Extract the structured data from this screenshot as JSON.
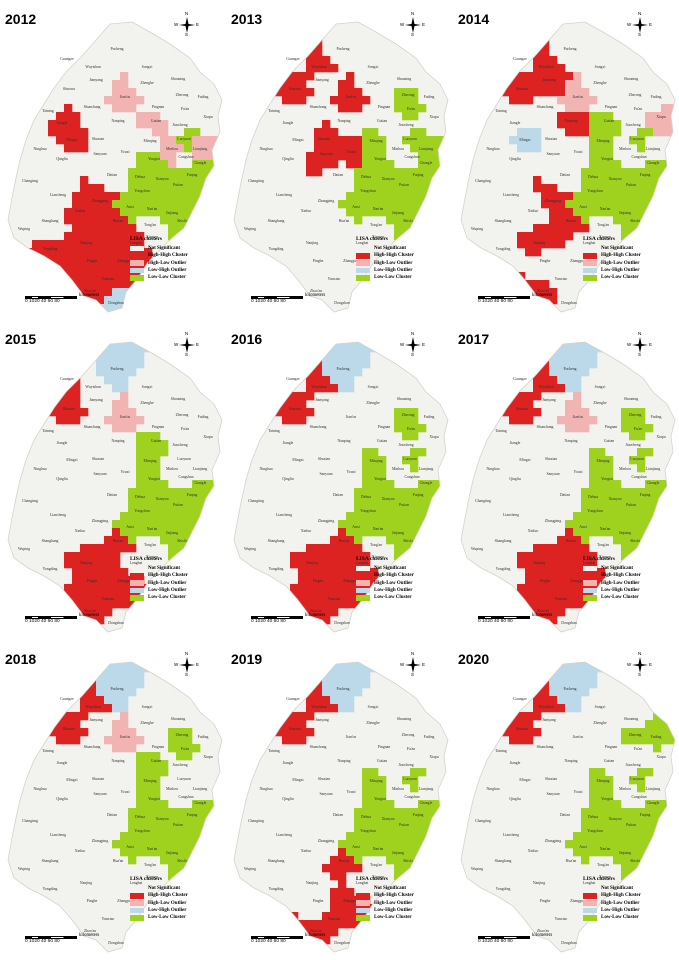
{
  "colors": {
    "not_significant": "#f2f3ee",
    "high_high": "#dd2222",
    "high_low": "#f2b3b3",
    "low_high": "#bcd9ea",
    "low_low": "#9fd11f",
    "border": "#d4d4cc"
  },
  "legend": {
    "title": "LISA clusters",
    "items": [
      {
        "key": "not_significant",
        "label": "Not Significant"
      },
      {
        "key": "high_high",
        "label": "High-High Cluster"
      },
      {
        "key": "high_low",
        "label": "High-Low Outlier"
      },
      {
        "key": "low_high",
        "label": "Low-High Outlier"
      },
      {
        "key": "low_low",
        "label": "Low-Low Cluster"
      }
    ]
  },
  "scale_bar": {
    "labels": "0 1020   40    60    80",
    "unit": "kilometers"
  },
  "compass": {
    "n": "N",
    "s": "S",
    "e": "E",
    "w": "W"
  },
  "place_labels": [
    "Pucheng",
    "Guangze",
    "Wuyishan",
    "Songxi",
    "Jianyang",
    "Zhenghe",
    "Shaowu",
    "Shouning",
    "Jian'ou",
    "Zherong",
    "Fuding",
    "Taining",
    "Shunchang",
    "Pingnan",
    "Fu'an",
    "Xiapu",
    "Jiangle",
    "Nanping",
    "Gutian",
    "Jiaocheng",
    "Luoyuan",
    "Lianjiang",
    "Mingxi",
    "Shaxian",
    "Minqing",
    "Youxi",
    "Yongtai",
    "Minhou",
    "Cangshan",
    "Changle",
    "Ninghua",
    "Qingliu",
    "Sanyuan",
    "Datian",
    "Dehua",
    "Xianyou",
    "Fuqing",
    "Changting",
    "Liancheng",
    "Yongchun",
    "Putian",
    "Anxi",
    "Nan'an",
    "Jinjiang",
    "Shishi",
    "Xinluo",
    "Zhangping",
    "Hua'an",
    "Tong'an",
    "Xiamen",
    "Longhai",
    "Zhangpu",
    "Wuping",
    "Shanghang",
    "Yongding",
    "Pinghe",
    "Nanjing",
    "Yunxiao",
    "Zhao'an",
    "Dongshan"
  ],
  "panels": [
    {
      "year": "2012",
      "high_high": [
        "Jiangle",
        "Mingxi",
        "Xinluo",
        "Zhangping",
        "Yongding",
        "Nanjing",
        "Pinghe",
        "Hua'an",
        "Longhai",
        "Zhangpu",
        "Yunxiao",
        "Zhao'an"
      ],
      "high_low": [
        "Jian'ou",
        "Gutian",
        "Minhou",
        "Lianjiang"
      ],
      "low_high": [
        "Dongshan"
      ],
      "low_low": [
        "Luoyuan",
        "Yongtai",
        "Fuqing",
        "Putian",
        "Xianyou",
        "Dehua",
        "Yongchun",
        "Nan'an",
        "Jinjiang",
        "Shishi",
        "Anxi",
        "Changle"
      ]
    },
    {
      "year": "2013",
      "high_high": [
        "Wuyishan",
        "Shaowu",
        "Jian'ou",
        "Sanyuan",
        "Shaxian",
        "Youxi"
      ],
      "high_low": [],
      "low_high": [],
      "low_low": [
        "Zherong",
        "Fu'an",
        "Luoyuan",
        "Minqing",
        "Yongtai",
        "Fuqing",
        "Putian",
        "Xianyou",
        "Dehua",
        "Yongchun",
        "Anxi",
        "Nan'an",
        "Jinjiang",
        "Shishi",
        "Changle",
        "Lianjiang"
      ]
    },
    {
      "year": "2014",
      "high_high": [
        "Wuyishan",
        "Jianyang",
        "Shaowu",
        "Nanping",
        "Zhangping",
        "Hua'an",
        "Nanjing",
        "Zhao'an"
      ],
      "high_low": [
        "Jian'ou",
        "Xiapu"
      ],
      "low_high": [
        "Mingxi"
      ],
      "low_low": [
        "Gutian",
        "Luoyuan",
        "Minqing",
        "Yongtai",
        "Fuqing",
        "Putian",
        "Xianyou",
        "Dehua",
        "Yongchun",
        "Anxi",
        "Nan'an",
        "Jinjiang",
        "Shishi",
        "Changle"
      ]
    },
    {
      "year": "2015",
      "high_high": [
        "Guangze",
        "Shaowu",
        "Hua'an",
        "Nanjing",
        "Pinghe",
        "Zhangpu",
        "Yunxiao",
        "Zhao'an"
      ],
      "high_low": [
        "Jian'ou"
      ],
      "low_high": [
        "Pucheng"
      ],
      "low_low": [
        "Gutian",
        "Minqing",
        "Yongtai",
        "Fuqing",
        "Putian",
        "Xianyou",
        "Dehua",
        "Yongchun",
        "Anxi",
        "Nan'an",
        "Jinjiang",
        "Shishi",
        "Changle"
      ]
    },
    {
      "year": "2016",
      "high_high": [
        "Wuyishan",
        "Shaowu",
        "Hua'an",
        "Nanjing",
        "Pinghe",
        "Longhai",
        "Zhangpu",
        "Yunxiao",
        "Zhao'an"
      ],
      "high_low": [],
      "low_high": [
        "Pucheng"
      ],
      "low_low": [
        "Zherong",
        "Fu'an",
        "Luoyuan",
        "Minqing",
        "Yongtai",
        "Fuqing",
        "Putian",
        "Xianyou",
        "Dehua",
        "Yongchun",
        "Anxi",
        "Nan'an",
        "Jinjiang",
        "Shishi",
        "Changle"
      ]
    },
    {
      "year": "2017",
      "high_high": [
        "Wuyishan",
        "Shaowu",
        "Hua'an",
        "Nanjing",
        "Pinghe",
        "Longhai",
        "Zhangpu",
        "Yunxiao",
        "Zhao'an"
      ],
      "high_low": [
        "Jian'ou"
      ],
      "low_high": [
        "Pucheng"
      ],
      "low_low": [
        "Zherong",
        "Fu'an",
        "Luoyuan",
        "Minqing",
        "Yongtai",
        "Fuqing",
        "Putian",
        "Xianyou",
        "Dehua",
        "Yongchun",
        "Anxi",
        "Nan'an",
        "Jinjiang",
        "Shishi",
        "Changle"
      ]
    },
    {
      "year": "2018",
      "high_high": [
        "Wuyishan",
        "Shaowu"
      ],
      "high_low": [
        "Jian'ou"
      ],
      "low_high": [
        "Pucheng"
      ],
      "low_low": [
        "Zherong",
        "Fu'an",
        "Gutian",
        "Minqing",
        "Yongtai",
        "Fuqing",
        "Putian",
        "Xianyou",
        "Dehua",
        "Yongchun",
        "Anxi",
        "Nan'an",
        "Jinjiang",
        "Shishi",
        "Changle"
      ]
    },
    {
      "year": "2019",
      "high_high": [
        "Wuyishan",
        "Shaowu",
        "Hua'an",
        "Zhangpu",
        "Yunxiao",
        "Zhao'an"
      ],
      "high_low": [],
      "low_high": [
        "Pucheng"
      ],
      "low_low": [
        "Luoyuan",
        "Minqing",
        "Yongtai",
        "Fuqing",
        "Putian",
        "Xianyou",
        "Dehua",
        "Yongchun",
        "Anxi",
        "Nan'an",
        "Jinjiang",
        "Shishi",
        "Changle"
      ]
    },
    {
      "year": "2020",
      "high_high": [
        "Wuyishan",
        "Shaowu"
      ],
      "high_low": [],
      "low_high": [
        "Pucheng"
      ],
      "low_low": [
        "Zherong",
        "Fuding",
        "Luoyuan",
        "Minqing",
        "Yongtai",
        "Fuqing",
        "Putian",
        "Xianyou",
        "Dehua",
        "Yongchun",
        "Anxi",
        "Nan'an",
        "Jinjiang",
        "Shishi",
        "Changle"
      ]
    }
  ]
}
